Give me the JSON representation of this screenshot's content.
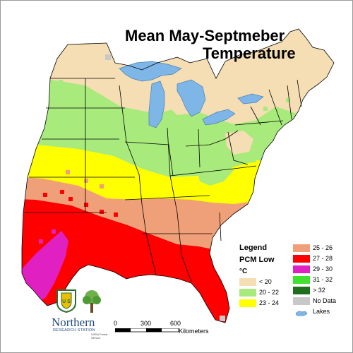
{
  "title": {
    "line1": "Mean May-Septmeber",
    "line2": "Temperature"
  },
  "legend": {
    "title": "Legend",
    "subtitle": "PCM Low",
    "units": "°C",
    "items": [
      {
        "label": "< 20",
        "color": "#f5deb3"
      },
      {
        "label": "20 - 22",
        "color": "#a8ea7c"
      },
      {
        "label": "23 - 24",
        "color": "#ffff00"
      },
      {
        "label": "25 - 26",
        "color": "#f0a078"
      },
      {
        "label": "27 - 28",
        "color": "#ff0000"
      },
      {
        "label": "29 - 30",
        "color": "#e020c0"
      },
      {
        "label": "31 - 32",
        "color": "#40e030"
      },
      {
        "label": "> 32",
        "color": "#1e6e1e"
      },
      {
        "label": "No Data",
        "color": "#c8c8c8"
      },
      {
        "label": "Lakes",
        "color": "#7fb6e8"
      }
    ]
  },
  "scale_bar": {
    "ticks": [
      "0",
      "300",
      "600"
    ],
    "units": "Kilometers"
  },
  "logo": {
    "org_name": "Northern",
    "org_sub": "RESEARCH STATION",
    "service": "USDA Forest Service",
    "badge_text": "U S",
    "icon": "forest-service-shield-icon",
    "tree_icon": "oak-tree-icon"
  },
  "map": {
    "region": "Eastern United States",
    "colors": {
      "cool": "#f5deb3",
      "green": "#a8ea7c",
      "yellow": "#ffff00",
      "salmon": "#f0a078",
      "red": "#ff0000",
      "magenta": "#e020c0",
      "lake": "#7fb6e8",
      "nodata": "#c8c8c8",
      "border": "#000000"
    }
  }
}
